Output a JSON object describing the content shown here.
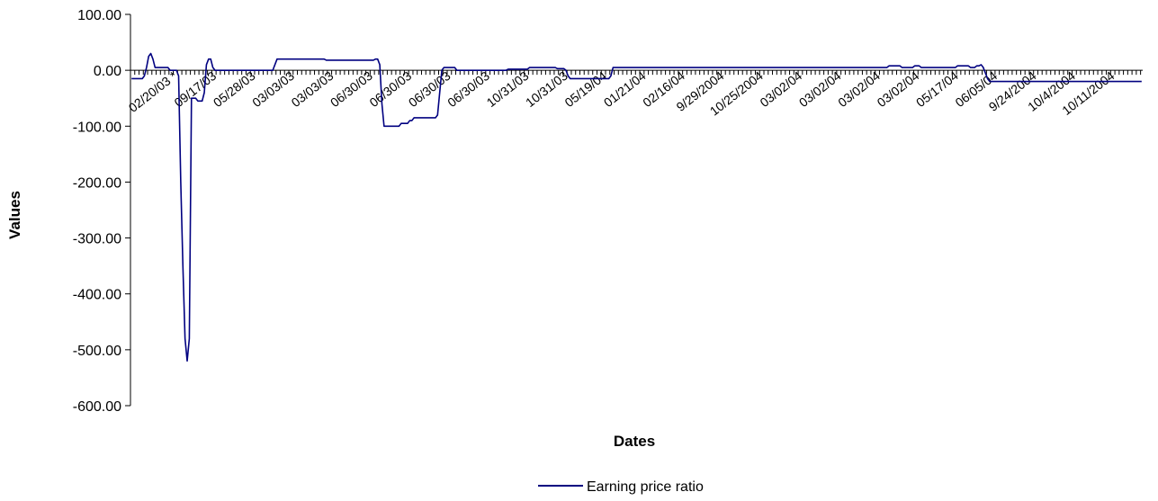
{
  "chart_data": {
    "type": "line",
    "xlabel": "Dates",
    "ylabel": "Values",
    "ylim": [
      -600,
      100
    ],
    "y_ticks": [
      "100.00",
      "0.00",
      "-100.00",
      "-200.00",
      "-300.00",
      "-400.00",
      "-500.00",
      "-600.00"
    ],
    "x_tick_labels": [
      "02/20/03 *",
      "09/17/03",
      "05/28/03",
      "03/03/03",
      "03/03/03",
      "06/30/03",
      "06/30/03",
      "06/30/03",
      "06/30/03",
      "10/31/03",
      "10/31/03",
      "05/19/04",
      "01/21/04",
      "02/16/04",
      "9/29/2004",
      "10/25/2004",
      "03/02/04",
      "03/02/04",
      "03/02/04",
      "03/02/04",
      "05/17/04",
      "06/05/04",
      "9/24/2004",
      "10/4/2004",
      "10/11/2004"
    ],
    "series": [
      {
        "name": "Earning price ratio",
        "color": "#000080",
        "values": [
          -15,
          -15,
          -15,
          -15,
          -15,
          -15,
          -10,
          5,
          25,
          30,
          20,
          5,
          5,
          5,
          5,
          5,
          5,
          5,
          0,
          0,
          0,
          0,
          -10,
          -200,
          -350,
          -480,
          -520,
          -480,
          -50,
          -50,
          -50,
          -55,
          -55,
          -55,
          -40,
          10,
          20,
          20,
          5,
          0,
          0,
          0,
          0,
          0,
          0,
          0,
          0,
          0,
          0,
          0,
          0,
          0,
          0,
          0,
          0,
          0,
          0,
          0,
          0,
          0,
          0,
          0,
          0,
          0,
          0,
          0,
          0,
          10,
          20,
          20,
          20,
          20,
          20,
          20,
          20,
          20,
          20,
          20,
          20,
          20,
          20,
          20,
          20,
          20,
          20,
          20,
          20,
          20,
          20,
          20,
          20,
          18,
          18,
          18,
          18,
          18,
          18,
          18,
          18,
          18,
          18,
          18,
          18,
          18,
          18,
          18,
          18,
          18,
          18,
          18,
          18,
          18,
          18,
          18,
          20,
          20,
          10,
          -60,
          -100,
          -100,
          -100,
          -100,
          -100,
          -100,
          -100,
          -100,
          -95,
          -95,
          -95,
          -95,
          -90,
          -90,
          -85,
          -85,
          -85,
          -85,
          -85,
          -85,
          -85,
          -85,
          -85,
          -85,
          -85,
          -80,
          -40,
          0,
          5,
          5,
          5,
          5,
          5,
          5,
          0,
          0,
          0,
          0,
          0,
          0,
          0,
          0,
          0,
          0,
          0,
          0,
          0,
          0,
          0,
          0,
          0,
          0,
          0,
          0,
          0,
          0,
          0,
          0,
          2,
          2,
          2,
          2,
          2,
          2,
          2,
          2,
          2,
          2,
          5,
          5,
          5,
          5,
          5,
          5,
          5,
          5,
          5,
          5,
          5,
          5,
          5,
          3,
          3,
          3,
          3,
          0,
          -10,
          -15,
          -15,
          -15,
          -15,
          -15,
          -15,
          -15,
          -15,
          -15,
          -15,
          -15,
          -15,
          -15,
          -15,
          -15,
          -15,
          -15,
          -15,
          -15,
          -10,
          5,
          5,
          5,
          5,
          5,
          5,
          5,
          5,
          5,
          5,
          5,
          5,
          5,
          5,
          5,
          5,
          5,
          5,
          5,
          5,
          5,
          5,
          5,
          5,
          5,
          5,
          5,
          5,
          5,
          5,
          5,
          5,
          5,
          5,
          5,
          5,
          5,
          5,
          5,
          5,
          5,
          5,
          5,
          5,
          5,
          5,
          5,
          5,
          5,
          5,
          5,
          5,
          5,
          5,
          5,
          5,
          5,
          5,
          5,
          5,
          5,
          5,
          5,
          5,
          5,
          5,
          5,
          5,
          5,
          5,
          5,
          5,
          5,
          5,
          5,
          5,
          5,
          5,
          5,
          5,
          5,
          5,
          5,
          5,
          5,
          5,
          5,
          5,
          5,
          5,
          5,
          5,
          5,
          5,
          5,
          5,
          5,
          5,
          5,
          5,
          5,
          5,
          5,
          5,
          5,
          5,
          5,
          5,
          5,
          5,
          5,
          5,
          5,
          5,
          5,
          5,
          5,
          5,
          5,
          5,
          5,
          5,
          5,
          5,
          5,
          5,
          5,
          5,
          5,
          8,
          8,
          8,
          8,
          8,
          8,
          5,
          5,
          5,
          5,
          5,
          5,
          8,
          8,
          8,
          5,
          5,
          5,
          5,
          5,
          5,
          5,
          5,
          5,
          5,
          5,
          5,
          5,
          5,
          5,
          5,
          5,
          8,
          8,
          8,
          8,
          8,
          8,
          5,
          5,
          5,
          8,
          8,
          10,
          5,
          -5,
          -15,
          -20,
          -20,
          -20,
          -20,
          -20,
          -20,
          -20,
          -20,
          -20,
          -20,
          -20,
          -20,
          -20,
          -20,
          -20,
          -20,
          -20,
          -20,
          -20,
          -20,
          -20,
          -20,
          -20,
          -20,
          -20,
          -20,
          -20,
          -20,
          -20,
          -20,
          -20,
          -20,
          -20,
          -20,
          -20,
          -20,
          -20,
          -20,
          -20,
          -20,
          -20,
          -20,
          -20,
          -20,
          -20,
          -20,
          -20,
          -20,
          -20,
          -20,
          -20,
          -20,
          -20,
          -20,
          -20,
          -20,
          -20,
          -20,
          -20,
          -20,
          -20,
          -20,
          -20,
          -20,
          -20,
          -20,
          -20,
          -20,
          -20,
          -20,
          -20,
          -20
        ]
      }
    ],
    "grid": false,
    "legend_position": "bottom"
  }
}
